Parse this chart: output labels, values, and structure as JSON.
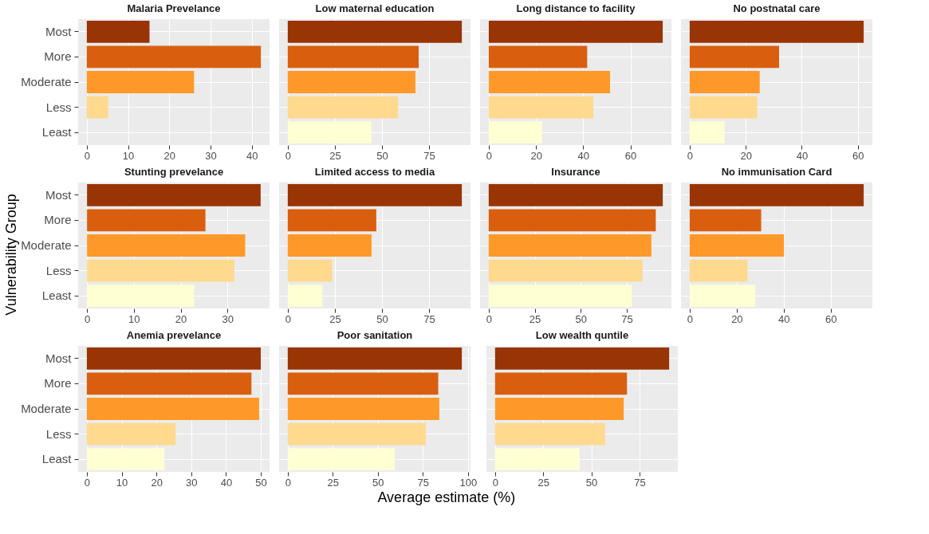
{
  "chart_data": [
    {
      "type": "bar",
      "orientation": "horizontal",
      "title": "Malaria Prevelance",
      "categories": [
        "Most",
        "More",
        "Moderate",
        "Less",
        "Least"
      ],
      "values": [
        15.2,
        42.2,
        26,
        5.2,
        0
      ],
      "colors": [
        "#993404",
        "#d95f0e",
        "#fe9929",
        "#fed98e",
        "#ffffd4"
      ],
      "xlim": [
        -2.1,
        44.3
      ],
      "xticks": [
        0,
        10,
        20,
        30,
        40
      ],
      "grid": true
    },
    {
      "type": "bar",
      "orientation": "horizontal",
      "title": "Low maternal education",
      "categories": [
        null,
        null,
        null,
        null,
        null
      ],
      "values": [
        92.4,
        69.5,
        67.8,
        58.6,
        44.4
      ],
      "colors": [
        "#993404",
        "#d95f0e",
        "#fe9929",
        "#fed98e",
        "#ffffd4"
      ],
      "xlim": [
        -4.6,
        97
      ],
      "xticks": [
        0,
        25,
        50,
        75
      ],
      "grid": true,
      "tick_labels": "x"
    },
    {
      "type": "bar",
      "orientation": "horizontal",
      "title": "Long distance to facility",
      "categories": [
        null,
        null,
        null,
        null,
        null
      ],
      "values": [
        73.7,
        41.7,
        51.4,
        44.3,
        22.6
      ],
      "colors": [
        "#993404",
        "#d95f0e",
        "#fe9929",
        "#fed98e",
        "#ffffd4"
      ],
      "xlim": [
        -3.7,
        77.4
      ],
      "xticks": [
        0,
        20,
        40,
        60
      ],
      "grid": true,
      "tick_labels": "x"
    },
    {
      "type": "bar",
      "orientation": "horizontal",
      "title": "No postnatal care",
      "categories": [
        null,
        null,
        null,
        null,
        null
      ],
      "values": [
        62.1,
        31.9,
        25,
        24.1,
        12.4
      ],
      "colors": [
        "#993404",
        "#d95f0e",
        "#fe9929",
        "#fed98e",
        "#ffffd4"
      ],
      "xlim": [
        -3.1,
        65.2
      ],
      "xticks": [
        0,
        20,
        40,
        60
      ],
      "grid": true,
      "tick_labels": "x"
    },
    {
      "type": "bar",
      "orientation": "horizontal",
      "title": "Stunting prevelance",
      "ylabel": "Vulnerability Group",
      "categories": [
        "Most",
        "More",
        "Moderate",
        "Less",
        "Least"
      ],
      "values": [
        37.1,
        25.3,
        33.8,
        31.5,
        22.9
      ],
      "colors": [
        "#993404",
        "#d95f0e",
        "#fe9929",
        "#fed98e",
        "#ffffd4"
      ],
      "xlim": [
        -1.9,
        39
      ],
      "xticks": [
        0,
        10,
        20,
        30
      ],
      "grid": true
    },
    {
      "type": "bar",
      "orientation": "horizontal",
      "title": "Limited access to media",
      "categories": [
        null,
        null,
        null,
        null,
        null
      ],
      "values": [
        92.4,
        47,
        44.5,
        23.6,
        18.4
      ],
      "colors": [
        "#993404",
        "#d95f0e",
        "#fe9929",
        "#fed98e",
        "#ffffd4"
      ],
      "xlim": [
        -4.6,
        97
      ],
      "xticks": [
        0,
        25,
        50,
        75
      ],
      "grid": true,
      "tick_labels": "x"
    },
    {
      "type": "bar",
      "orientation": "horizontal",
      "title": "Insurance",
      "categories": [
        null,
        null,
        null,
        null,
        null
      ],
      "values": [
        94.6,
        90.8,
        88.4,
        83.6,
        77.8
      ],
      "colors": [
        "#993404",
        "#d95f0e",
        "#fe9929",
        "#fed98e",
        "#ffffd4"
      ],
      "xlim": [
        -4.7,
        99.3
      ],
      "xticks": [
        0,
        25,
        50,
        75
      ],
      "grid": true,
      "tick_labels": "x"
    },
    {
      "type": "bar",
      "orientation": "horizontal",
      "title": "No immunisation Card",
      "categories": [
        null,
        null,
        null,
        null,
        null
      ],
      "values": [
        74,
        30.4,
        40.1,
        24.6,
        27.9
      ],
      "colors": [
        "#993404",
        "#d95f0e",
        "#fe9929",
        "#fed98e",
        "#ffffd4"
      ],
      "xlim": [
        -3.7,
        77.7
      ],
      "xticks": [
        0,
        20,
        40,
        60
      ],
      "grid": true,
      "tick_labels": "x"
    },
    {
      "type": "bar",
      "orientation": "horizontal",
      "title": "Anemia prevelance",
      "categories": [
        "Most",
        "More",
        "Moderate",
        "Less",
        "Least"
      ],
      "values": [
        50,
        47.3,
        49.5,
        25.5,
        22.3
      ],
      "colors": [
        "#993404",
        "#d95f0e",
        "#fe9929",
        "#fed98e",
        "#ffffd4"
      ],
      "xlim": [
        -2.5,
        52.5
      ],
      "xticks": [
        0,
        10,
        20,
        30,
        40,
        50
      ],
      "grid": true
    },
    {
      "type": "bar",
      "orientation": "horizontal",
      "title": "Poor sanitation",
      "xlabel": "Average estimate (%)",
      "categories": [
        null,
        null,
        null,
        null,
        null
      ],
      "values": [
        96.6,
        83.5,
        84.1,
        76.6,
        59.4
      ],
      "colors": [
        "#993404",
        "#d95f0e",
        "#fe9929",
        "#fed98e",
        "#ffffd4"
      ],
      "xlim": [
        -4.8,
        101.4
      ],
      "xticks": [
        0,
        25,
        50,
        75,
        100
      ],
      "grid": true,
      "tick_labels": "x"
    },
    {
      "type": "bar",
      "orientation": "horizontal",
      "title": "Low wealth quntile",
      "categories": [
        null,
        null,
        null,
        null,
        null
      ],
      "values": [
        90.4,
        68.5,
        66.8,
        57.1,
        43.9
      ],
      "colors": [
        "#993404",
        "#d95f0e",
        "#fe9929",
        "#fed98e",
        "#ffffd4"
      ],
      "xlim": [
        -4.5,
        94.9
      ],
      "xticks": [
        0,
        25,
        50,
        75
      ],
      "grid": true,
      "tick_labels": "x"
    }
  ]
}
